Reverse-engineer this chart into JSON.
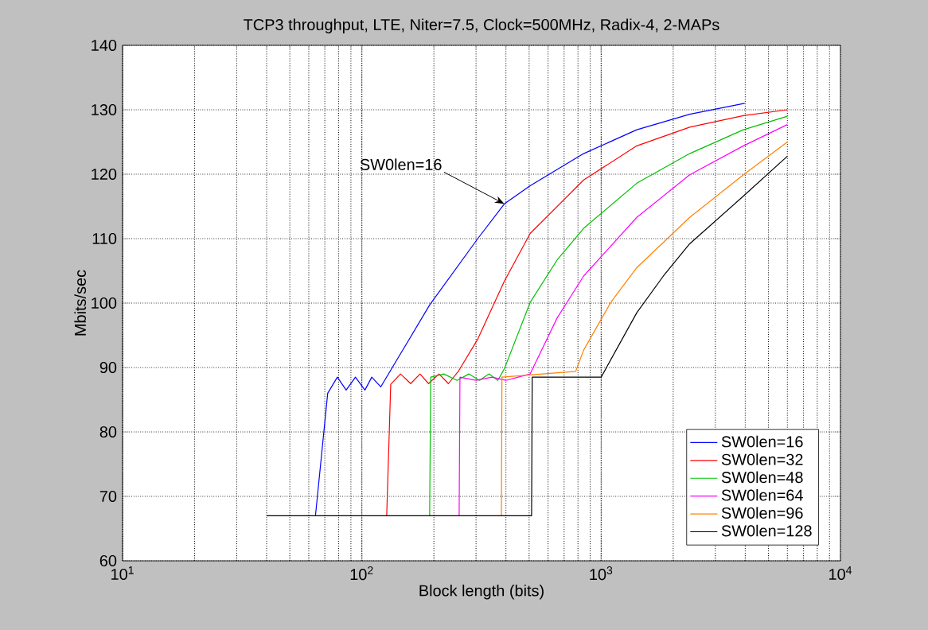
{
  "chart_data": {
    "type": "line",
    "title": "TCP3 throughput, LTE, Niter=7.5, Clock=500MHz, Radix-4, 2-MAPs",
    "xlabel": "Block length (bits)",
    "ylabel": "Mbits/sec",
    "log": "x",
    "grid": true,
    "legend": "bottom right",
    "xlim": [
      10,
      10000
    ],
    "xticks": [
      {
        "value": 10,
        "label": "10$^{1}$"
      },
      {
        "value": 100,
        "label": "10$^{2}$"
      },
      {
        "value": 1000,
        "label": "10$^{3}$"
      },
      {
        "value": 10000,
        "label": "10$^{4}$"
      }
    ],
    "ylim": [
      60,
      140
    ],
    "yticks": [
      60,
      70,
      80,
      90,
      100,
      110,
      120,
      130,
      140
    ],
    "annotations": [
      {
        "text": "SW0len=16",
        "x": 394,
        "y": 115.4
      }
    ],
    "series": [
      {
        "name": "SW0len=16",
        "color": "#0000ff",
        "x": [
          64,
          72,
          79,
          86,
          94,
          103,
          110,
          120,
          192,
          305,
          394,
          505,
          845,
          1409,
          2344,
          3980
        ],
        "values": [
          67,
          86,
          88.5,
          86.5,
          88.5,
          86.5,
          88.5,
          87,
          99.7,
          110,
          115.4,
          118.2,
          123.2,
          126.9,
          129.3,
          131
        ]
      },
      {
        "name": "SW0len=32",
        "color": "#ff0000",
        "x": [
          127,
          132,
          145,
          160,
          175,
          190,
          210,
          230,
          254,
          305,
          394,
          505,
          845,
          1409,
          2344,
          3930,
          6000
        ],
        "values": [
          67,
          87.4,
          89,
          87.5,
          89,
          87.5,
          89,
          87.5,
          89.5,
          94.4,
          103.4,
          110.8,
          119.1,
          124.4,
          127.3,
          129.1,
          130
        ]
      },
      {
        "name": "SW0len=48",
        "color": "#00c000",
        "x": [
          192,
          194,
          220,
          250,
          280,
          310,
          340,
          370,
          394,
          505,
          655,
          845,
          1409,
          2344,
          3930,
          6000
        ],
        "values": [
          67,
          88.5,
          89,
          88,
          89,
          88,
          89,
          88,
          89.8,
          100.1,
          106.7,
          111.6,
          118.6,
          123.2,
          126.9,
          129
        ]
      },
      {
        "name": "SW0len=64",
        "color": "#ff00ff",
        "x": [
          255,
          257,
          300,
          350,
          400,
          450,
          505,
          655,
          845,
          1409,
          2344,
          3930,
          6000
        ],
        "values": [
          67,
          88.5,
          88,
          88.5,
          88,
          88.5,
          89,
          97.7,
          104.2,
          113.3,
          119.9,
          124.4,
          127.7
        ]
      },
      {
        "name": "SW0len=96",
        "color": "#ff8000",
        "x": [
          383,
          385,
          783,
          845,
          1097,
          1409,
          2344,
          3930,
          6000
        ],
        "values": [
          67,
          88.5,
          89.4,
          92.7,
          100.1,
          105.5,
          113.3,
          119.9,
          125
        ]
      },
      {
        "name": "SW0len=128",
        "color": "#000000",
        "x": [
          40,
          512,
          515,
          1000,
          1409,
          1820,
          2344,
          3930,
          6000
        ],
        "values": [
          67,
          67,
          88.5,
          88.5,
          98.5,
          104.2,
          109.2,
          116.6,
          122.8
        ]
      }
    ]
  }
}
